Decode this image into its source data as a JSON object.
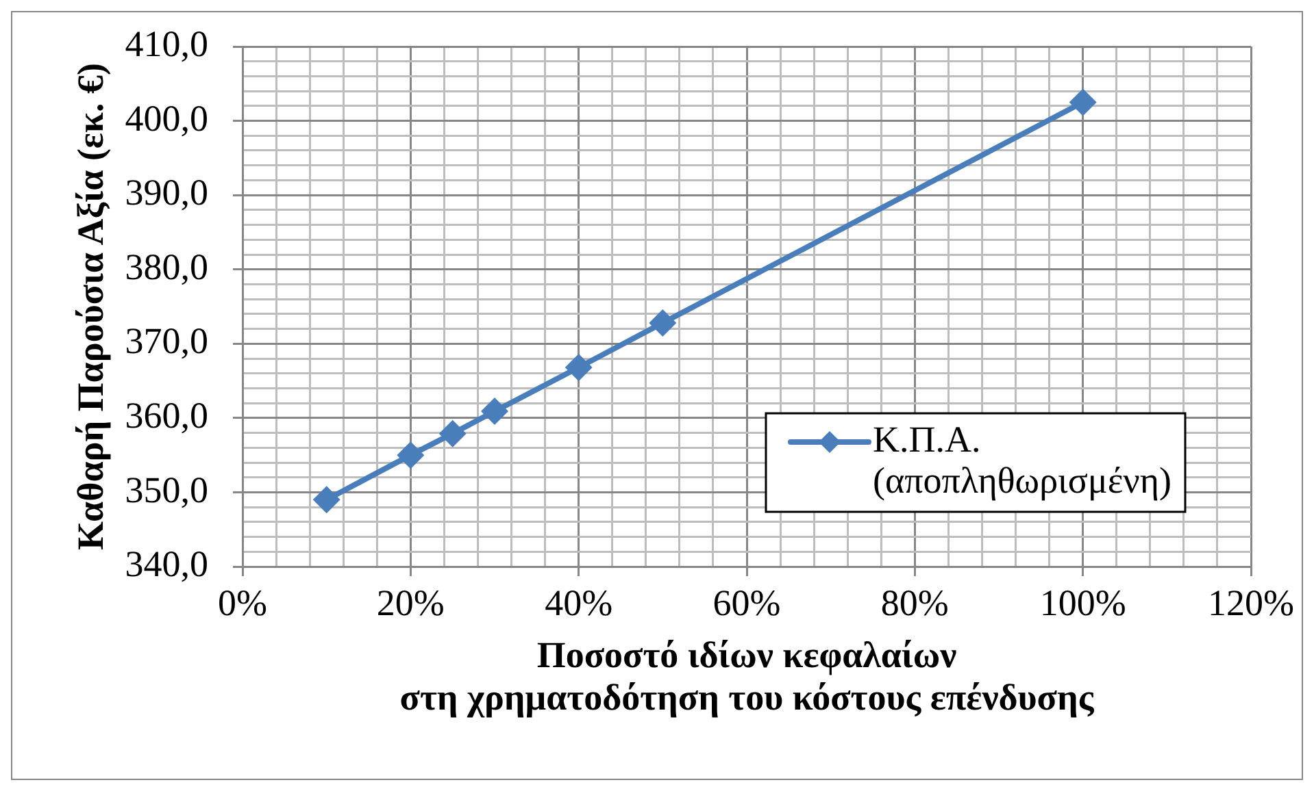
{
  "chart_data": {
    "type": "line",
    "xlabel": "Ποσοστό ιδίων κεφαλαίων\nστη χρηματοδότηση του κόστους επένδυσης",
    "ylabel": "Καθαρή Παρούσια Αξία (εκ. €)",
    "x": [
      10,
      20,
      25,
      30,
      40,
      50,
      100
    ],
    "series": [
      {
        "name": "Κ.Π.Α. (αποπληθωρισμένη)",
        "color": "#4a7ebb",
        "values": [
          349.0,
          355.0,
          357.9,
          360.9,
          366.8,
          372.8,
          402.5
        ]
      }
    ],
    "xlim": [
      0,
      120
    ],
    "xticks": [
      {
        "value": 0,
        "label": "0%"
      },
      {
        "value": 4,
        "label": null
      },
      {
        "value": 8,
        "label": null
      },
      {
        "value": 12,
        "label": null
      },
      {
        "value": 16,
        "label": null
      },
      {
        "value": 20,
        "label": "20%"
      },
      {
        "value": 24,
        "label": null
      },
      {
        "value": 28,
        "label": null
      },
      {
        "value": 32,
        "label": null
      },
      {
        "value": 36,
        "label": null
      },
      {
        "value": 40,
        "label": "40%"
      },
      {
        "value": 44,
        "label": null
      },
      {
        "value": 48,
        "label": null
      },
      {
        "value": 52,
        "label": null
      },
      {
        "value": 56,
        "label": null
      },
      {
        "value": 60,
        "label": "60%"
      },
      {
        "value": 64,
        "label": null
      },
      {
        "value": 68,
        "label": null
      },
      {
        "value": 72,
        "label": null
      },
      {
        "value": 76,
        "label": null
      },
      {
        "value": 80,
        "label": "80%"
      },
      {
        "value": 84,
        "label": null
      },
      {
        "value": 88,
        "label": null
      },
      {
        "value": 92,
        "label": null
      },
      {
        "value": 96,
        "label": null
      },
      {
        "value": 100,
        "label": "100%"
      },
      {
        "value": 104,
        "label": null
      },
      {
        "value": 108,
        "label": null
      },
      {
        "value": 112,
        "label": null
      },
      {
        "value": 116,
        "label": null
      },
      {
        "value": 120,
        "label": "120%"
      }
    ],
    "ylim": [
      340,
      410
    ],
    "yticks": [
      {
        "value": 340,
        "label": "340,0"
      },
      {
        "value": 342,
        "label": null
      },
      {
        "value": 344,
        "label": null
      },
      {
        "value": 346,
        "label": null
      },
      {
        "value": 348,
        "label": null
      },
      {
        "value": 350,
        "label": "350,0"
      },
      {
        "value": 352,
        "label": null
      },
      {
        "value": 354,
        "label": null
      },
      {
        "value": 356,
        "label": null
      },
      {
        "value": 358,
        "label": null
      },
      {
        "value": 360,
        "label": "360,0"
      },
      {
        "value": 362,
        "label": null
      },
      {
        "value": 364,
        "label": null
      },
      {
        "value": 366,
        "label": null
      },
      {
        "value": 368,
        "label": null
      },
      {
        "value": 370,
        "label": "370,0"
      },
      {
        "value": 372,
        "label": null
      },
      {
        "value": 374,
        "label": null
      },
      {
        "value": 376,
        "label": null
      },
      {
        "value": 378,
        "label": null
      },
      {
        "value": 380,
        "label": "380,0"
      },
      {
        "value": 382,
        "label": null
      },
      {
        "value": 384,
        "label": null
      },
      {
        "value": 386,
        "label": null
      },
      {
        "value": 388,
        "label": null
      },
      {
        "value": 390,
        "label": "390,0"
      },
      {
        "value": 392,
        "label": null
      },
      {
        "value": 394,
        "label": null
      },
      {
        "value": 396,
        "label": null
      },
      {
        "value": 398,
        "label": null
      },
      {
        "value": 400,
        "label": "400,0"
      },
      {
        "value": 402,
        "label": null
      },
      {
        "value": 404,
        "label": null
      },
      {
        "value": 406,
        "label": null
      },
      {
        "value": 408,
        "label": null
      },
      {
        "value": 410,
        "label": "410,0"
      }
    ],
    "grid": true,
    "legend": "bottom right",
    "marker": "diamond",
    "line_style": "solid"
  }
}
